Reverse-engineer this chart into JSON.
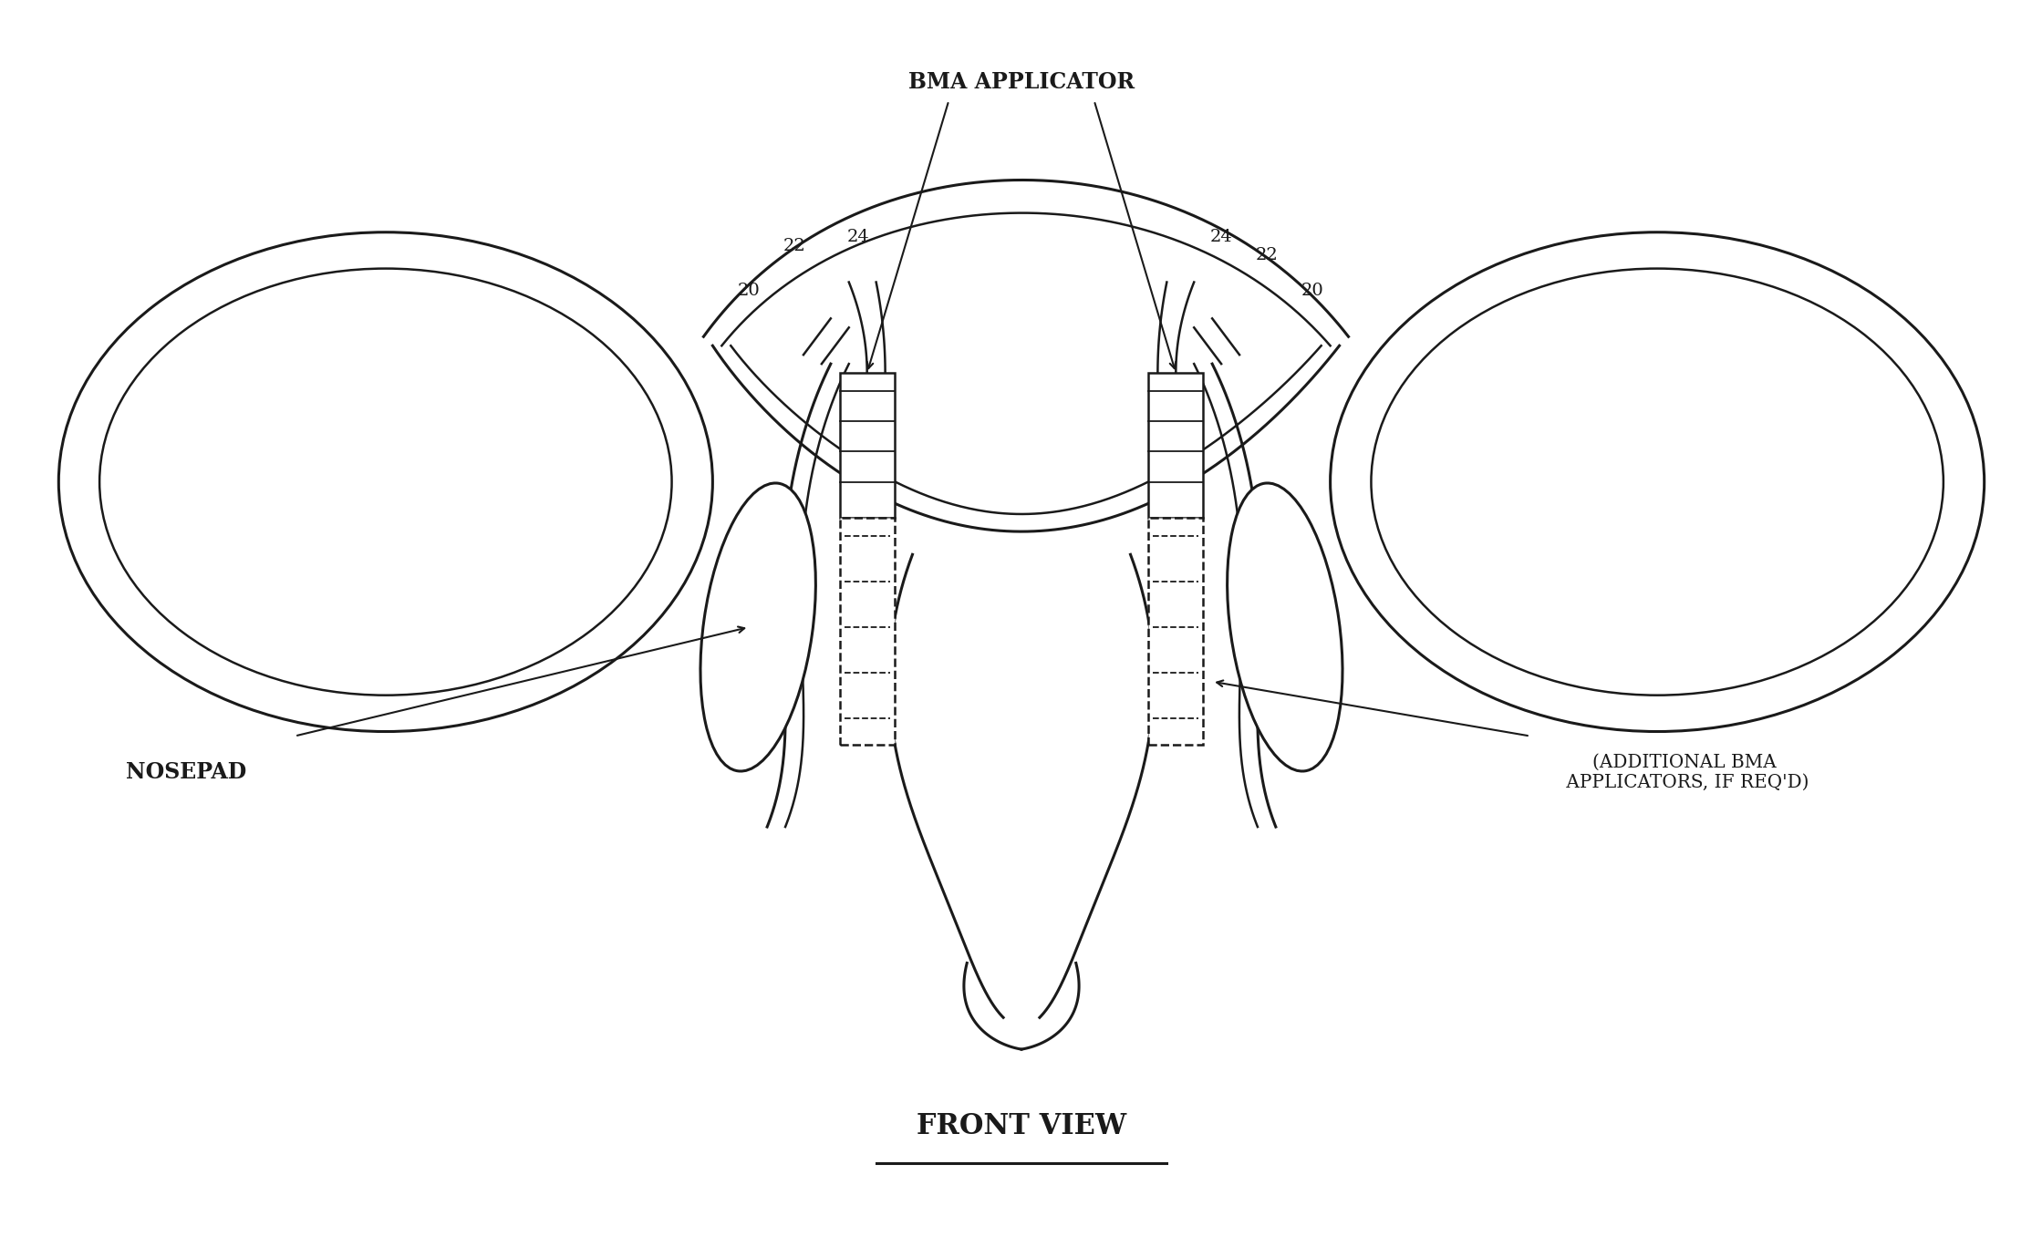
{
  "title": "FRONT VIEW",
  "bg_color": "#ffffff",
  "line_color": "#1a1a1a",
  "label_bma_applicator": "BMA APPLICATOR",
  "label_nosepad": "NOSEPAD",
  "label_additional": "(ADDITIONAL BMA\n APPLICATORS, IF REQ'D)",
  "label_20": "20",
  "label_22": "22",
  "label_24": "24",
  "fig_width": 22.39,
  "fig_height": 13.68
}
